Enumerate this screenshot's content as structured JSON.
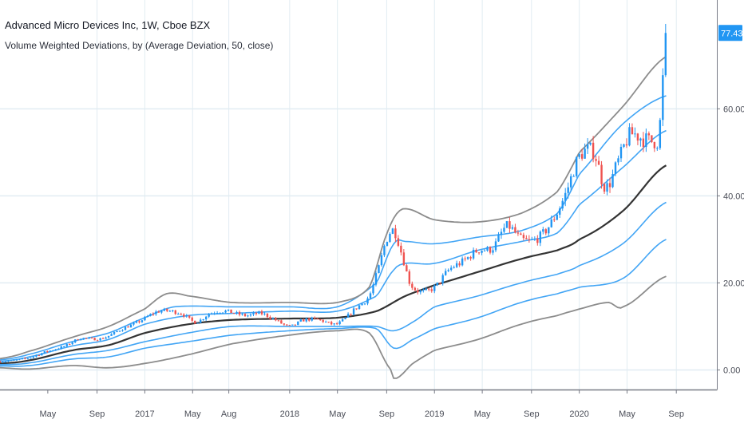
{
  "header": {
    "title": "Advanced Micro Devices Inc, 1W, Cboe BZX",
    "indicator": "Volume Weighted Deviations, by  (Average Deviation, 50, close)"
  },
  "colors": {
    "background": "#ffffff",
    "grid": "#e1ecf2",
    "axis": "#787b86",
    "candle_up": "#2196f3",
    "candle_down": "#ef5350",
    "basis": "#333333",
    "inner_bands": "#42a5f5",
    "outer_bands": "#8c8c8c",
    "last_price_bg": "#2196f3",
    "last_price_text": "#ffffff"
  },
  "chart_data": {
    "type": "line",
    "title": "",
    "xlabel": "",
    "ylabel": "",
    "ylim": [
      -4.5,
      85
    ],
    "x_range": [
      2016.0,
      2020.95
    ],
    "y_ticks": [
      {
        "value": 0,
        "label": "0.00"
      },
      {
        "value": 20,
        "label": "20.00"
      },
      {
        "value": 40,
        "label": "40.00"
      },
      {
        "value": 60,
        "label": "60.00"
      }
    ],
    "x_ticks": [
      {
        "value": 2016.33,
        "label": "May"
      },
      {
        "value": 2016.67,
        "label": "Sep"
      },
      {
        "value": 2017.0,
        "label": "2017"
      },
      {
        "value": 2017.33,
        "label": "May"
      },
      {
        "value": 2017.58,
        "label": "Aug"
      },
      {
        "value": 2018.0,
        "label": "2018"
      },
      {
        "value": 2018.33,
        "label": "May"
      },
      {
        "value": 2018.67,
        "label": "Sep"
      },
      {
        "value": 2019.0,
        "label": "2019"
      },
      {
        "value": 2019.33,
        "label": "May"
      },
      {
        "value": 2019.67,
        "label": "Sep"
      },
      {
        "value": 2020.0,
        "label": "2020"
      },
      {
        "value": 2020.33,
        "label": "May"
      },
      {
        "value": 2020.67,
        "label": "Sep"
      }
    ],
    "x_grid": [
      2016.67,
      2017.0,
      2017.33,
      2017.58,
      2018.0,
      2018.33,
      2018.67,
      2019.0,
      2019.33,
      2019.67,
      2020.0,
      2020.33,
      2020.67
    ],
    "last_price": {
      "value": 77.43,
      "label": "77.43"
    },
    "price_anchors": [
      {
        "x": 2016.0,
        "y": 2.0
      },
      {
        "x": 2016.1,
        "y": 2.2
      },
      {
        "x": 2016.2,
        "y": 2.8
      },
      {
        "x": 2016.3,
        "y": 4.0
      },
      {
        "x": 2016.45,
        "y": 5.5
      },
      {
        "x": 2016.55,
        "y": 7.2
      },
      {
        "x": 2016.7,
        "y": 7.2
      },
      {
        "x": 2016.85,
        "y": 9.5
      },
      {
        "x": 2016.95,
        "y": 11.0
      },
      {
        "x": 2017.1,
        "y": 13.5
      },
      {
        "x": 2017.25,
        "y": 13.0
      },
      {
        "x": 2017.35,
        "y": 11.0
      },
      {
        "x": 2017.45,
        "y": 13.0
      },
      {
        "x": 2017.55,
        "y": 13.5
      },
      {
        "x": 2017.7,
        "y": 12.5
      },
      {
        "x": 2017.8,
        "y": 13.0
      },
      {
        "x": 2017.9,
        "y": 11.5
      },
      {
        "x": 2018.0,
        "y": 10.0
      },
      {
        "x": 2018.1,
        "y": 11.5
      },
      {
        "x": 2018.2,
        "y": 11.5
      },
      {
        "x": 2018.3,
        "y": 10.5
      },
      {
        "x": 2018.35,
        "y": 11.0
      },
      {
        "x": 2018.45,
        "y": 14.0
      },
      {
        "x": 2018.55,
        "y": 17.0
      },
      {
        "x": 2018.62,
        "y": 24.0
      },
      {
        "x": 2018.67,
        "y": 30.0
      },
      {
        "x": 2018.72,
        "y": 32.0
      },
      {
        "x": 2018.78,
        "y": 26.0
      },
      {
        "x": 2018.83,
        "y": 20.0
      },
      {
        "x": 2018.9,
        "y": 18.0
      },
      {
        "x": 2019.0,
        "y": 19.0
      },
      {
        "x": 2019.1,
        "y": 23.0
      },
      {
        "x": 2019.2,
        "y": 25.0
      },
      {
        "x": 2019.3,
        "y": 27.5
      },
      {
        "x": 2019.4,
        "y": 28.0
      },
      {
        "x": 2019.5,
        "y": 33.0
      },
      {
        "x": 2019.6,
        "y": 30.0
      },
      {
        "x": 2019.7,
        "y": 30.0
      },
      {
        "x": 2019.8,
        "y": 33.5
      },
      {
        "x": 2019.9,
        "y": 40.0
      },
      {
        "x": 2020.0,
        "y": 49.0
      },
      {
        "x": 2020.1,
        "y": 50.0
      },
      {
        "x": 2020.18,
        "y": 42.0
      },
      {
        "x": 2020.27,
        "y": 48.0
      },
      {
        "x": 2020.35,
        "y": 54.0
      },
      {
        "x": 2020.45,
        "y": 53.0
      },
      {
        "x": 2020.52,
        "y": 52.5
      },
      {
        "x": 2020.55,
        "y": 54.0
      },
      {
        "x": 2020.58,
        "y": 68.0
      },
      {
        "x": 2020.6,
        "y": 77.43
      }
    ],
    "series": [
      {
        "name": "basis",
        "role": "basis",
        "points": [
          {
            "x": 2016.0,
            "y": 1.5
          },
          {
            "x": 2016.2,
            "y": 2.2
          },
          {
            "x": 2016.5,
            "y": 4.5
          },
          {
            "x": 2016.75,
            "y": 5.7
          },
          {
            "x": 2017.0,
            "y": 8.5
          },
          {
            "x": 2017.3,
            "y": 10.5
          },
          {
            "x": 2017.6,
            "y": 11.5
          },
          {
            "x": 2018.0,
            "y": 11.8
          },
          {
            "x": 2018.33,
            "y": 12.0
          },
          {
            "x": 2018.6,
            "y": 13.5
          },
          {
            "x": 2018.8,
            "y": 17.0
          },
          {
            "x": 2019.0,
            "y": 19.5
          },
          {
            "x": 2019.3,
            "y": 22.5
          },
          {
            "x": 2019.6,
            "y": 25.5
          },
          {
            "x": 2019.85,
            "y": 27.5
          },
          {
            "x": 2020.0,
            "y": 30.0
          },
          {
            "x": 2020.3,
            "y": 36.5
          },
          {
            "x": 2020.6,
            "y": 47.0
          }
        ]
      },
      {
        "name": "upper 1",
        "role": "inner",
        "points": [
          {
            "x": 2016.0,
            "y": 2.0
          },
          {
            "x": 2016.2,
            "y": 3.0
          },
          {
            "x": 2016.5,
            "y": 5.5
          },
          {
            "x": 2016.75,
            "y": 7.0
          },
          {
            "x": 2017.0,
            "y": 10.5
          },
          {
            "x": 2017.3,
            "y": 12.5
          },
          {
            "x": 2017.6,
            "y": 13.0
          },
          {
            "x": 2018.0,
            "y": 13.5
          },
          {
            "x": 2018.33,
            "y": 13.5
          },
          {
            "x": 2018.6,
            "y": 17.0
          },
          {
            "x": 2018.72,
            "y": 23.0
          },
          {
            "x": 2018.8,
            "y": 24.5
          },
          {
            "x": 2019.0,
            "y": 24.5
          },
          {
            "x": 2019.3,
            "y": 27.5
          },
          {
            "x": 2019.6,
            "y": 29.5
          },
          {
            "x": 2019.85,
            "y": 31.5
          },
          {
            "x": 2020.0,
            "y": 38.0
          },
          {
            "x": 2020.3,
            "y": 46.5
          },
          {
            "x": 2020.6,
            "y": 55.0
          }
        ]
      },
      {
        "name": "upper 2",
        "role": "inner",
        "points": [
          {
            "x": 2016.0,
            "y": 2.3
          },
          {
            "x": 2016.2,
            "y": 3.6
          },
          {
            "x": 2016.5,
            "y": 6.5
          },
          {
            "x": 2016.75,
            "y": 8.5
          },
          {
            "x": 2017.0,
            "y": 12.0
          },
          {
            "x": 2017.2,
            "y": 14.5
          },
          {
            "x": 2017.6,
            "y": 14.5
          },
          {
            "x": 2018.0,
            "y": 14.5
          },
          {
            "x": 2018.33,
            "y": 14.5
          },
          {
            "x": 2018.6,
            "y": 20.0
          },
          {
            "x": 2018.72,
            "y": 29.0
          },
          {
            "x": 2018.8,
            "y": 29.5
          },
          {
            "x": 2019.0,
            "y": 29.0
          },
          {
            "x": 2019.3,
            "y": 30.5
          },
          {
            "x": 2019.6,
            "y": 32.0
          },
          {
            "x": 2019.85,
            "y": 36.0
          },
          {
            "x": 2020.0,
            "y": 45.0
          },
          {
            "x": 2020.3,
            "y": 56.5
          },
          {
            "x": 2020.6,
            "y": 63.0
          }
        ]
      },
      {
        "name": "upper 3",
        "role": "outer",
        "points": [
          {
            "x": 2016.0,
            "y": 2.6
          },
          {
            "x": 2016.2,
            "y": 4.3
          },
          {
            "x": 2016.5,
            "y": 7.5
          },
          {
            "x": 2016.75,
            "y": 10.0
          },
          {
            "x": 2017.0,
            "y": 14.0
          },
          {
            "x": 2017.15,
            "y": 17.5
          },
          {
            "x": 2017.3,
            "y": 17.0
          },
          {
            "x": 2017.6,
            "y": 15.5
          },
          {
            "x": 2018.0,
            "y": 15.5
          },
          {
            "x": 2018.33,
            "y": 15.5
          },
          {
            "x": 2018.55,
            "y": 19.0
          },
          {
            "x": 2018.68,
            "y": 32.0
          },
          {
            "x": 2018.78,
            "y": 37.0
          },
          {
            "x": 2019.0,
            "y": 34.5
          },
          {
            "x": 2019.3,
            "y": 34.0
          },
          {
            "x": 2019.6,
            "y": 36.0
          },
          {
            "x": 2019.85,
            "y": 41.0
          },
          {
            "x": 2020.0,
            "y": 50.0
          },
          {
            "x": 2020.3,
            "y": 60.5
          },
          {
            "x": 2020.6,
            "y": 72.0
          }
        ]
      },
      {
        "name": "lower 1",
        "role": "inner",
        "points": [
          {
            "x": 2016.0,
            "y": 1.2
          },
          {
            "x": 2016.2,
            "y": 1.6
          },
          {
            "x": 2016.5,
            "y": 3.5
          },
          {
            "x": 2016.75,
            "y": 4.5
          },
          {
            "x": 2017.0,
            "y": 6.5
          },
          {
            "x": 2017.3,
            "y": 8.5
          },
          {
            "x": 2017.6,
            "y": 10.0
          },
          {
            "x": 2018.0,
            "y": 10.0
          },
          {
            "x": 2018.33,
            "y": 10.0
          },
          {
            "x": 2018.6,
            "y": 10.0
          },
          {
            "x": 2018.72,
            "y": 9.0
          },
          {
            "x": 2018.85,
            "y": 11.0
          },
          {
            "x": 2019.0,
            "y": 14.5
          },
          {
            "x": 2019.3,
            "y": 17.0
          },
          {
            "x": 2019.6,
            "y": 20.0
          },
          {
            "x": 2019.85,
            "y": 22.0
          },
          {
            "x": 2020.0,
            "y": 24.0
          },
          {
            "x": 2020.3,
            "y": 29.0
          },
          {
            "x": 2020.6,
            "y": 38.5
          }
        ]
      },
      {
        "name": "lower 2",
        "role": "inner",
        "points": [
          {
            "x": 2016.0,
            "y": 0.9
          },
          {
            "x": 2016.2,
            "y": 1.0
          },
          {
            "x": 2016.5,
            "y": 2.5
          },
          {
            "x": 2016.75,
            "y": 3.0
          },
          {
            "x": 2017.0,
            "y": 5.0
          },
          {
            "x": 2017.3,
            "y": 6.5
          },
          {
            "x": 2017.6,
            "y": 8.0
          },
          {
            "x": 2018.0,
            "y": 9.0
          },
          {
            "x": 2018.33,
            "y": 9.5
          },
          {
            "x": 2018.6,
            "y": 9.5
          },
          {
            "x": 2018.72,
            "y": 5.0
          },
          {
            "x": 2018.85,
            "y": 7.0
          },
          {
            "x": 2019.0,
            "y": 9.5
          },
          {
            "x": 2019.3,
            "y": 12.0
          },
          {
            "x": 2019.6,
            "y": 15.5
          },
          {
            "x": 2019.85,
            "y": 17.5
          },
          {
            "x": 2020.0,
            "y": 19.0
          },
          {
            "x": 2020.3,
            "y": 21.0
          },
          {
            "x": 2020.6,
            "y": 30.0
          }
        ]
      },
      {
        "name": "lower 3",
        "role": "outer",
        "points": [
          {
            "x": 2016.0,
            "y": 0.5
          },
          {
            "x": 2016.2,
            "y": 0.2
          },
          {
            "x": 2016.5,
            "y": 1.0
          },
          {
            "x": 2016.75,
            "y": 0.5
          },
          {
            "x": 2017.0,
            "y": 1.5
          },
          {
            "x": 2017.3,
            "y": 3.5
          },
          {
            "x": 2017.6,
            "y": 6.0
          },
          {
            "x": 2018.0,
            "y": 8.0
          },
          {
            "x": 2018.33,
            "y": 9.0
          },
          {
            "x": 2018.55,
            "y": 8.5
          },
          {
            "x": 2018.7,
            "y": 0.0
          },
          {
            "x": 2018.73,
            "y": -2.0
          },
          {
            "x": 2018.85,
            "y": 1.5
          },
          {
            "x": 2019.0,
            "y": 4.5
          },
          {
            "x": 2019.3,
            "y": 7.0
          },
          {
            "x": 2019.6,
            "y": 10.5
          },
          {
            "x": 2019.85,
            "y": 12.5
          },
          {
            "x": 2020.0,
            "y": 14.0
          },
          {
            "x": 2020.2,
            "y": 15.5
          },
          {
            "x": 2020.3,
            "y": 14.5
          },
          {
            "x": 2020.6,
            "y": 21.5
          }
        ]
      }
    ]
  }
}
